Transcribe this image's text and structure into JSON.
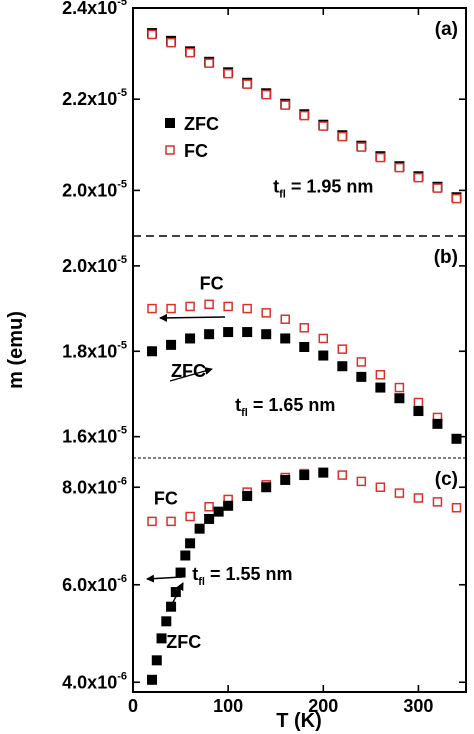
{
  "chart_data": [
    {
      "panel": "(a)",
      "type": "scatter",
      "ylabel": "m (emu)",
      "xlabel": "T (K)",
      "xlim": [
        0,
        350
      ],
      "ylim": [
        1.9e-05,
        2.4e-05
      ],
      "xticks": [
        "0",
        "100",
        "200",
        "300"
      ],
      "yticks": [
        {
          "value": 2e-05,
          "mant": "2.0x10",
          "exp": "-5"
        },
        {
          "value": 2.2e-05,
          "mant": "2.2x10",
          "exp": "-5"
        },
        {
          "value": 2.4e-05,
          "mant": "2.4x10",
          "exp": "-5"
        }
      ],
      "legend": {
        "placement": "center-left",
        "entries": [
          {
            "label": "ZFC",
            "marker": "filled-square",
            "color": "#000000"
          },
          {
            "label": "FC",
            "marker": "open-square",
            "color": "#d9312b"
          }
        ]
      },
      "annotation": {
        "main": "t",
        "sub": "fl",
        "rest": " = 1.95 nm",
        "at": [
          200,
          1.995e-05
        ]
      },
      "series": [
        {
          "name": "ZFC",
          "marker": "filled-square",
          "color": "#000000",
          "x": [
            20,
            40,
            60,
            80,
            100,
            120,
            140,
            160,
            180,
            200,
            220,
            240,
            260,
            280,
            300,
            320,
            340
          ],
          "y": [
            2.345e-05,
            2.328e-05,
            2.305e-05,
            2.282e-05,
            2.259e-05,
            2.236e-05,
            2.213e-05,
            2.19e-05,
            2.167e-05,
            2.144e-05,
            2.121e-05,
            2.098e-05,
            2.075e-05,
            2.053e-05,
            2.031e-05,
            2.008e-05,
            1.985e-05
          ]
        },
        {
          "name": "FC",
          "marker": "open-square",
          "color": "#d9312b",
          "x": [
            20,
            40,
            60,
            80,
            100,
            120,
            140,
            160,
            180,
            200,
            220,
            240,
            260,
            280,
            300,
            320,
            340
          ],
          "y": [
            2.342e-05,
            2.324e-05,
            2.302e-05,
            2.279e-05,
            2.256e-05,
            2.233e-05,
            2.21e-05,
            2.187e-05,
            2.164e-05,
            2.141e-05,
            2.118e-05,
            2.095e-05,
            2.072e-05,
            2.05e-05,
            2.028e-05,
            2.005e-05,
            1.982e-05
          ]
        }
      ]
    },
    {
      "panel": "(b)",
      "type": "scatter",
      "xlim": [
        0,
        350
      ],
      "ylim": [
        1.55e-05,
        2.07e-05
      ],
      "yticks": [
        {
          "value": 1.6e-05,
          "mant": "1.6x10",
          "exp": "-5"
        },
        {
          "value": 1.8e-05,
          "mant": "1.8x10",
          "exp": "-5"
        },
        {
          "value": 2e-05,
          "mant": "2.0x10",
          "exp": "-5"
        }
      ],
      "labels": [
        {
          "text": "FC",
          "at": [
            70,
            1.945e-05
          ]
        },
        {
          "text": "ZFC",
          "at": [
            40,
            1.74e-05
          ]
        }
      ],
      "annotation": {
        "main": "t",
        "sub": "fl",
        "rest": " = 1.65 nm",
        "at": [
          160,
          1.66e-05
        ]
      },
      "series": [
        {
          "name": "FC",
          "marker": "open-square",
          "color": "#d9312b",
          "x": [
            20,
            40,
            60,
            80,
            100,
            120,
            140,
            160,
            180,
            200,
            220,
            240,
            260,
            280,
            300,
            320,
            340
          ],
          "y": [
            1.9e-05,
            1.9e-05,
            1.905e-05,
            1.91e-05,
            1.905e-05,
            1.9e-05,
            1.89e-05,
            1.875e-05,
            1.855e-05,
            1.83e-05,
            1.805e-05,
            1.775e-05,
            1.745e-05,
            1.715e-05,
            1.68e-05,
            1.645e-05,
            1.595e-05
          ]
        },
        {
          "name": "ZFC",
          "marker": "filled-square",
          "color": "#000000",
          "x": [
            20,
            40,
            60,
            80,
            100,
            120,
            140,
            160,
            180,
            200,
            220,
            240,
            260,
            280,
            300,
            320,
            340
          ],
          "y": [
            1.8e-05,
            1.815e-05,
            1.83e-05,
            1.84e-05,
            1.845e-05,
            1.845e-05,
            1.84e-05,
            1.83e-05,
            1.81e-05,
            1.79e-05,
            1.765e-05,
            1.74e-05,
            1.715e-05,
            1.69e-05,
            1.66e-05,
            1.63e-05,
            1.595e-05
          ]
        }
      ]
    },
    {
      "panel": "(c)",
      "type": "scatter",
      "xlim": [
        0,
        350
      ],
      "ylim": [
        3.8e-06,
        8.6e-06
      ],
      "yticks": [
        {
          "value": 4e-06,
          "mant": "4.0x10",
          "exp": "-6"
        },
        {
          "value": 6e-06,
          "mant": "6.0x10",
          "exp": "-6"
        },
        {
          "value": 8e-06,
          "mant": "8.0x10",
          "exp": "-6"
        }
      ],
      "labels": [
        {
          "text": "FC",
          "at": [
            22,
            7.65e-06
          ]
        },
        {
          "text": "ZFC",
          "at": [
            35,
            4.7e-06
          ]
        }
      ],
      "annotation": {
        "main": "t",
        "sub": "fl",
        "rest": " = 1.55 nm",
        "at": [
          115,
          6.1e-06
        ]
      },
      "series": [
        {
          "name": "FC",
          "marker": "open-square",
          "color": "#d9312b",
          "x": [
            20,
            40,
            60,
            80,
            100,
            120,
            140,
            160,
            180,
            200,
            220,
            240,
            260,
            280,
            300,
            320,
            340
          ],
          "y": [
            7.3e-06,
            7.3e-06,
            7.4e-06,
            7.6e-06,
            7.75e-06,
            7.9e-06,
            8.05e-06,
            8.2e-06,
            8.28e-06,
            8.3e-06,
            8.25e-06,
            8.12e-06,
            8e-06,
            7.88e-06,
            7.78e-06,
            7.7e-06,
            7.58e-06
          ]
        },
        {
          "name": "ZFC",
          "marker": "filled-square",
          "color": "#000000",
          "x": [
            20,
            25,
            30,
            35,
            40,
            45,
            50,
            55,
            60,
            70,
            80,
            90,
            100,
            120,
            140,
            160,
            180,
            200
          ],
          "y": [
            4.05e-06,
            4.45e-06,
            4.9e-06,
            5.25e-06,
            5.55e-06,
            5.85e-06,
            6.25e-06,
            6.6e-06,
            6.85e-06,
            7.15e-06,
            7.35e-06,
            7.5e-06,
            7.62e-06,
            7.82e-06,
            8e-06,
            8.15e-06,
            8.25e-06,
            8.3e-06
          ]
        }
      ]
    }
  ]
}
